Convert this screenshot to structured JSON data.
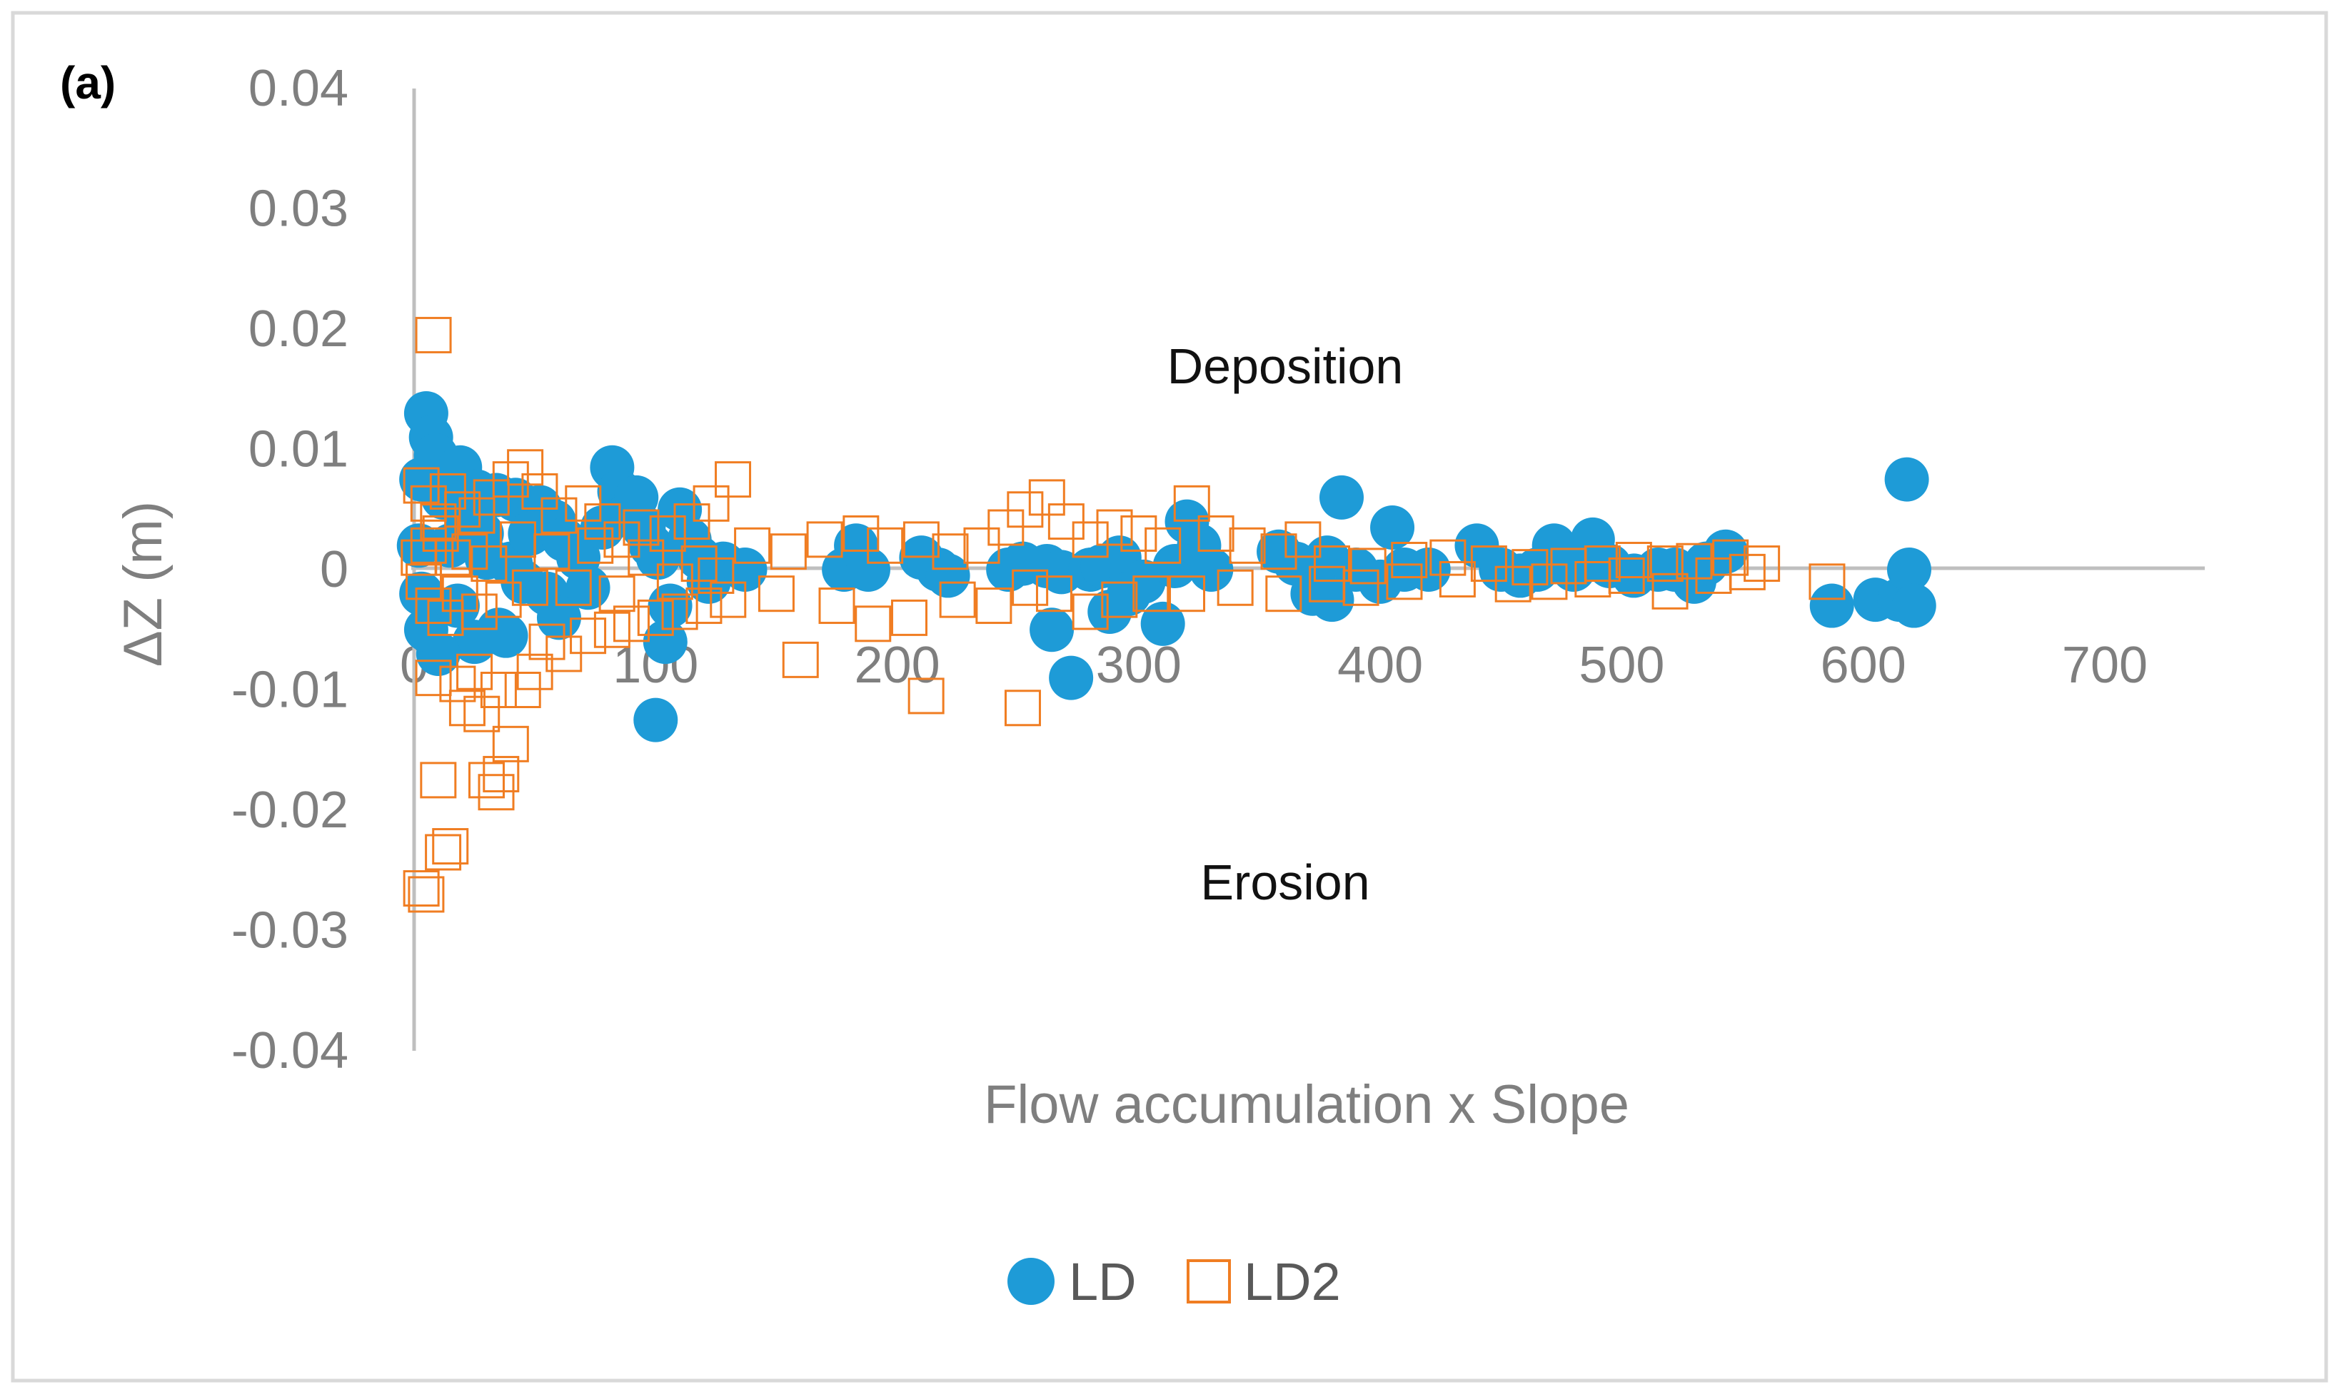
{
  "chart_data": {
    "type": "scatter",
    "panel_label": "(a)",
    "title": "",
    "xlabel": "Flow accumulation x Slope",
    "ylabel": "ΔZ (m)",
    "xlim": [
      0,
      700
    ],
    "ylim": [
      -0.04,
      0.04
    ],
    "x_ticks": [
      0,
      100,
      200,
      300,
      400,
      500,
      600,
      700
    ],
    "y_ticks": [
      0.04,
      0.03,
      0.02,
      0.01,
      0,
      -0.01,
      -0.02,
      -0.03,
      -0.04
    ],
    "x_tick_labels": [
      "0",
      "100",
      "200",
      "300",
      "400",
      "500",
      "600",
      "700"
    ],
    "y_tick_labels": [
      "0.04",
      "0.03",
      "0.02",
      "0.01",
      "0",
      "-0.01",
      "-0.02",
      "-0.03",
      "-0.04"
    ],
    "grid": false,
    "legend_position": "bottom-center",
    "annotations": [
      {
        "text": "Deposition",
        "x": 340,
        "y": 0.0165
      },
      {
        "text": "Erosion",
        "x": 340,
        "y": -0.026
      }
    ],
    "series": [
      {
        "name": "LD",
        "marker": "filled-circle",
        "color": "#1e9bd7",
        "points": [
          [
            5,
            0.013
          ],
          [
            7,
            0.011
          ],
          [
            9,
            0.0095
          ],
          [
            19,
            0.0085
          ],
          [
            3,
            0.0075
          ],
          [
            26,
            0.0065
          ],
          [
            34,
            0.0062
          ],
          [
            42,
            0.0058
          ],
          [
            52,
            0.0052
          ],
          [
            12,
            0.006
          ],
          [
            22,
            0.004
          ],
          [
            15,
            0.002
          ],
          [
            30,
            0.001
          ],
          [
            40,
            0.0005
          ],
          [
            45,
            -0.001
          ],
          [
            55,
            -0.002
          ],
          [
            60,
            -0.004
          ],
          [
            35,
            -0.005
          ],
          [
            25,
            -0.006
          ],
          [
            10,
            -0.007
          ],
          [
            5,
            -0.005
          ],
          [
            2,
            0.002
          ],
          [
            3,
            -0.002
          ],
          [
            18,
            -0.003
          ],
          [
            28,
            0.003
          ],
          [
            38,
            -0.0055
          ],
          [
            48,
            0.003
          ],
          [
            58,
            0.004
          ],
          [
            62,
            0.0025
          ],
          [
            68,
            0.001
          ],
          [
            72,
            -0.0015
          ],
          [
            78,
            0.0035
          ],
          [
            82,
            0.0085
          ],
          [
            85,
            0.0065
          ],
          [
            88,
            0.0045
          ],
          [
            92,
            0.006
          ],
          [
            95,
            0.0035
          ],
          [
            98,
            0.002
          ],
          [
            101,
            0.001
          ],
          [
            104,
            -0.006
          ],
          [
            106,
            -0.003
          ],
          [
            110,
            0.005
          ],
          [
            114,
            0.0025
          ],
          [
            118,
            0.001
          ],
          [
            122,
            -0.001
          ],
          [
            128,
            0.0005
          ],
          [
            137,
            0
          ],
          [
            100,
            -0.0125
          ],
          [
            178,
            0
          ],
          [
            183,
            0.002
          ],
          [
            188,
            0
          ],
          [
            210,
            0.001
          ],
          [
            217,
            0
          ],
          [
            221,
            -0.0005
          ],
          [
            246,
            0
          ],
          [
            252,
            0.0005
          ],
          [
            262,
            0.0003
          ],
          [
            264,
            -0.005
          ],
          [
            268,
            -0.0002
          ],
          [
            272,
            -0.009
          ],
          [
            280,
            0
          ],
          [
            285,
            0.0003
          ],
          [
            288,
            -0.0035
          ],
          [
            292,
            0.001
          ],
          [
            296,
            -0.002
          ],
          [
            302,
            -0.001
          ],
          [
            310,
            -0.0045
          ],
          [
            315,
            0.0003
          ],
          [
            320,
            0.004
          ],
          [
            325,
            0.002
          ],
          [
            330,
            0
          ],
          [
            358,
            0.0015
          ],
          [
            365,
            0.0005
          ],
          [
            372,
            -0.002
          ],
          [
            378,
            0.001
          ],
          [
            380,
            -0.0025
          ],
          [
            384,
            0.006
          ],
          [
            390,
            0
          ],
          [
            400,
            -0.001
          ],
          [
            405,
            0.0035
          ],
          [
            410,
            0
          ],
          [
            420,
            0
          ],
          [
            440,
            0.002
          ],
          [
            450,
            0
          ],
          [
            458,
            -0.0005
          ],
          [
            465,
            0
          ],
          [
            472,
            0.002
          ],
          [
            480,
            0
          ],
          [
            488,
            0.0025
          ],
          [
            495,
            0.0003
          ],
          [
            505,
            -0.0005
          ],
          [
            515,
            0
          ],
          [
            522,
            0
          ],
          [
            530,
            -0.001
          ],
          [
            535,
            0.0005
          ],
          [
            543,
            0.0015
          ],
          [
            587,
            -0.003
          ],
          [
            605,
            -0.0025
          ],
          [
            615,
            -0.0025
          ],
          [
            618,
            0.0075
          ],
          [
            619,
            0
          ],
          [
            621,
            -0.003
          ]
        ]
      },
      {
        "name": "LD2",
        "marker": "open-square",
        "color": "#f07d22",
        "points": [
          [
            8,
            0.0195
          ],
          [
            3,
            0.007
          ],
          [
            6,
            0.0055
          ],
          [
            10,
            0.004
          ],
          [
            14,
            0.0065
          ],
          [
            20,
            0.005
          ],
          [
            26,
            0.0045
          ],
          [
            32,
            0.006
          ],
          [
            40,
            0.0075
          ],
          [
            46,
            0.0085
          ],
          [
            52,
            0.0065
          ],
          [
            60,
            0.0045
          ],
          [
            70,
            0.0055
          ],
          [
            78,
            0.004
          ],
          [
            86,
            0.0025
          ],
          [
            94,
            0.0035
          ],
          [
            105,
            0.003
          ],
          [
            115,
            0.004
          ],
          [
            123,
            0.0055
          ],
          [
            132,
            0.0075
          ],
          [
            140,
            0.002
          ],
          [
            155,
            0.0015
          ],
          [
            170,
            0.0025
          ],
          [
            185,
            0.003
          ],
          [
            195,
            0.002
          ],
          [
            210,
            0.0025
          ],
          [
            222,
            0.0015
          ],
          [
            235,
            0.002
          ],
          [
            245,
            0.0035
          ],
          [
            253,
            0.005
          ],
          [
            262,
            0.006
          ],
          [
            270,
            0.004
          ],
          [
            280,
            0.0025
          ],
          [
            290,
            0.0035
          ],
          [
            300,
            0.003
          ],
          [
            310,
            0.002
          ],
          [
            322,
            0.0055
          ],
          [
            332,
            0.003
          ],
          [
            345,
            0.002
          ],
          [
            358,
            0.0015
          ],
          [
            368,
            0.0025
          ],
          [
            380,
            0.0005
          ],
          [
            395,
            0.0003
          ],
          [
            412,
            0.0008
          ],
          [
            428,
            0.001
          ],
          [
            445,
            0.0005
          ],
          [
            462,
            0.0002
          ],
          [
            478,
            0.0003
          ],
          [
            492,
            0.0005
          ],
          [
            505,
            0.0008
          ],
          [
            518,
            0.0005
          ],
          [
            530,
            0.0007
          ],
          [
            545,
            0.001
          ],
          [
            558,
            0.0005
          ],
          [
            585,
            -0.001
          ],
          [
            3,
            -0.0265
          ],
          [
            5,
            -0.027
          ],
          [
            12,
            -0.0235
          ],
          [
            15,
            -0.023
          ],
          [
            30,
            -0.0175
          ],
          [
            34,
            -0.0185
          ],
          [
            36,
            -0.017
          ],
          [
            10,
            -0.0175
          ],
          [
            40,
            -0.0145
          ],
          [
            22,
            -0.0115
          ],
          [
            28,
            -0.012
          ],
          [
            35,
            -0.01
          ],
          [
            45,
            -0.01
          ],
          [
            50,
            -0.0085
          ],
          [
            18,
            -0.0095
          ],
          [
            25,
            -0.0085
          ],
          [
            8,
            -0.009
          ],
          [
            55,
            -0.006
          ],
          [
            62,
            -0.007
          ],
          [
            72,
            -0.0055
          ],
          [
            82,
            -0.005
          ],
          [
            90,
            -0.0045
          ],
          [
            100,
            -0.004
          ],
          [
            110,
            -0.0035
          ],
          [
            120,
            -0.003
          ],
          [
            130,
            -0.0025
          ],
          [
            150,
            -0.002
          ],
          [
            160,
            -0.0075
          ],
          [
            175,
            -0.003
          ],
          [
            190,
            -0.0045
          ],
          [
            205,
            -0.004
          ],
          [
            212,
            -0.0105
          ],
          [
            225,
            -0.0025
          ],
          [
            240,
            -0.003
          ],
          [
            255,
            -0.0015
          ],
          [
            252,
            -0.0115
          ],
          [
            265,
            -0.002
          ],
          [
            280,
            -0.0035
          ],
          [
            292,
            -0.0025
          ],
          [
            305,
            -0.002
          ],
          [
            320,
            -0.002
          ],
          [
            340,
            -0.0015
          ],
          [
            360,
            -0.002
          ],
          [
            378,
            -0.0012
          ],
          [
            392,
            -0.0015
          ],
          [
            410,
            -0.001
          ],
          [
            432,
            -0.0008
          ],
          [
            455,
            -0.0012
          ],
          [
            470,
            -0.001
          ],
          [
            488,
            -0.0008
          ],
          [
            502,
            -0.0005
          ],
          [
            520,
            -0.0018
          ],
          [
            538,
            -0.0005
          ],
          [
            552,
            -0.0002
          ],
          [
            2,
            0.001
          ],
          [
            4,
            -0.001
          ],
          [
            6,
            0.002
          ],
          [
            8,
            -0.003
          ],
          [
            11,
            0.003
          ],
          [
            13,
            -0.004
          ],
          [
            16,
            0.001
          ],
          [
            19,
            -0.002
          ],
          [
            23,
            0.0015
          ],
          [
            27,
            -0.0035
          ],
          [
            31,
            0.0005
          ],
          [
            37,
            -0.0025
          ],
          [
            43,
            0.0025
          ],
          [
            48,
            -0.0015
          ],
          [
            57,
            0.0015
          ],
          [
            66,
            -0.0015
          ],
          [
            75,
            0.002
          ],
          [
            84,
            -0.002
          ],
          [
            96,
            0.001
          ],
          [
            108,
            -0.001
          ],
          [
            118,
            0.0005
          ],
          [
            125,
            -0.0005
          ]
        ]
      }
    ]
  },
  "legend": {
    "items": [
      "LD",
      "LD2"
    ]
  }
}
